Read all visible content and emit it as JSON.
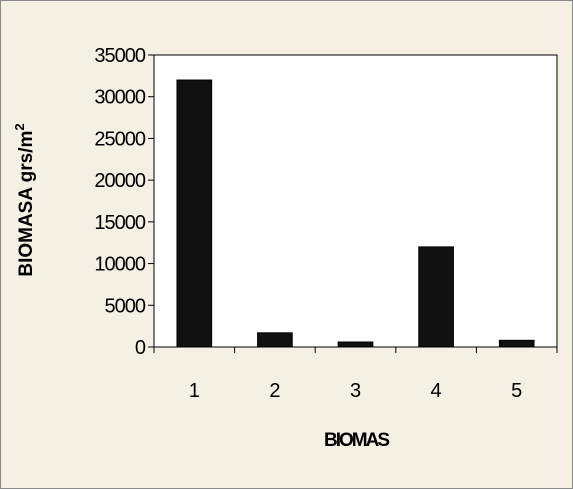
{
  "chart_data": {
    "type": "bar",
    "categories": [
      "1",
      "2",
      "3",
      "4",
      "5"
    ],
    "values": [
      32000,
      1700,
      600,
      12000,
      800
    ],
    "title": "",
    "xlabel": "BIOMAS",
    "ylabel_main": "BIOMASA grs/m",
    "ylabel_superscript": "2",
    "ylim": [
      0,
      35000
    ],
    "yticks": [
      "0",
      "5000",
      "10000",
      "15000",
      "20000",
      "25000",
      "30000",
      "35000"
    ],
    "grid": false,
    "legend": "none",
    "colors": {
      "background": "#f5f0e4",
      "plot_area": "#ffffff",
      "bar": "#111111"
    }
  }
}
